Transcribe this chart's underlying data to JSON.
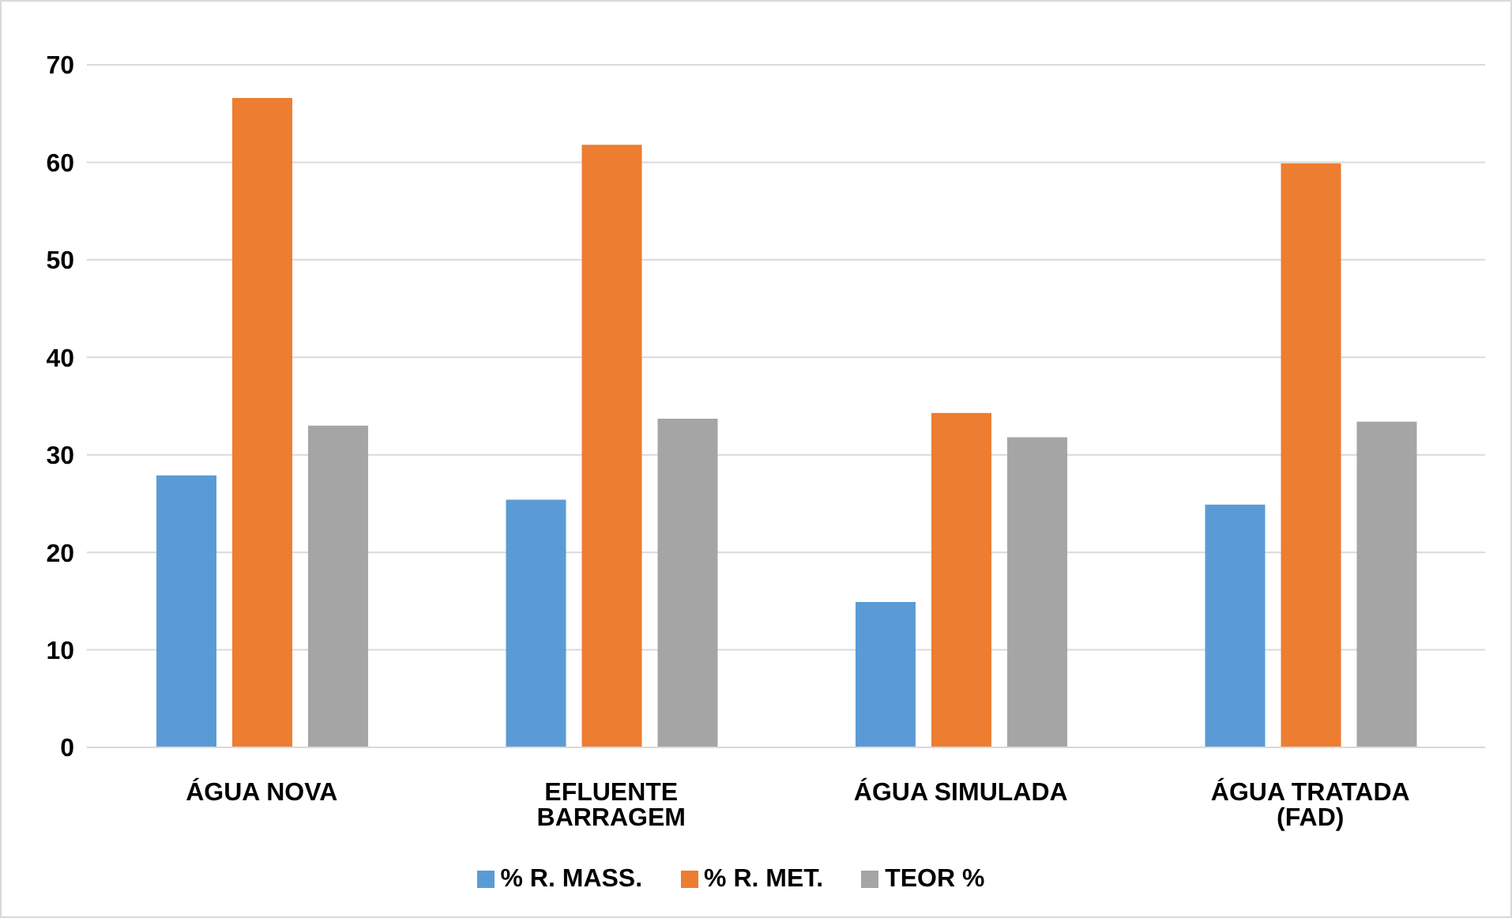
{
  "chart_data": {
    "type": "bar",
    "categories": [
      "ÁGUA NOVA",
      "EFLUENTE BARRAGEM",
      "ÁGUA SIMULADA",
      "ÁGUA TRATADA (FAD)"
    ],
    "series": [
      {
        "name": "% R. MASS.",
        "color": "#5b9bd5",
        "values": [
          27.9,
          25.4,
          14.9,
          24.9
        ]
      },
      {
        "name": "% R. MET.",
        "color": "#ed7d31",
        "values": [
          66.6,
          61.8,
          34.3,
          59.9
        ]
      },
      {
        "name": "TEOR %",
        "color": "#a5a5a5",
        "values": [
          33.0,
          33.7,
          31.8,
          33.4
        ]
      }
    ],
    "ylim": [
      0,
      70
    ],
    "yticks": [
      0,
      10,
      20,
      30,
      40,
      50,
      60,
      70
    ],
    "grid": "y",
    "legend": "bottom"
  }
}
